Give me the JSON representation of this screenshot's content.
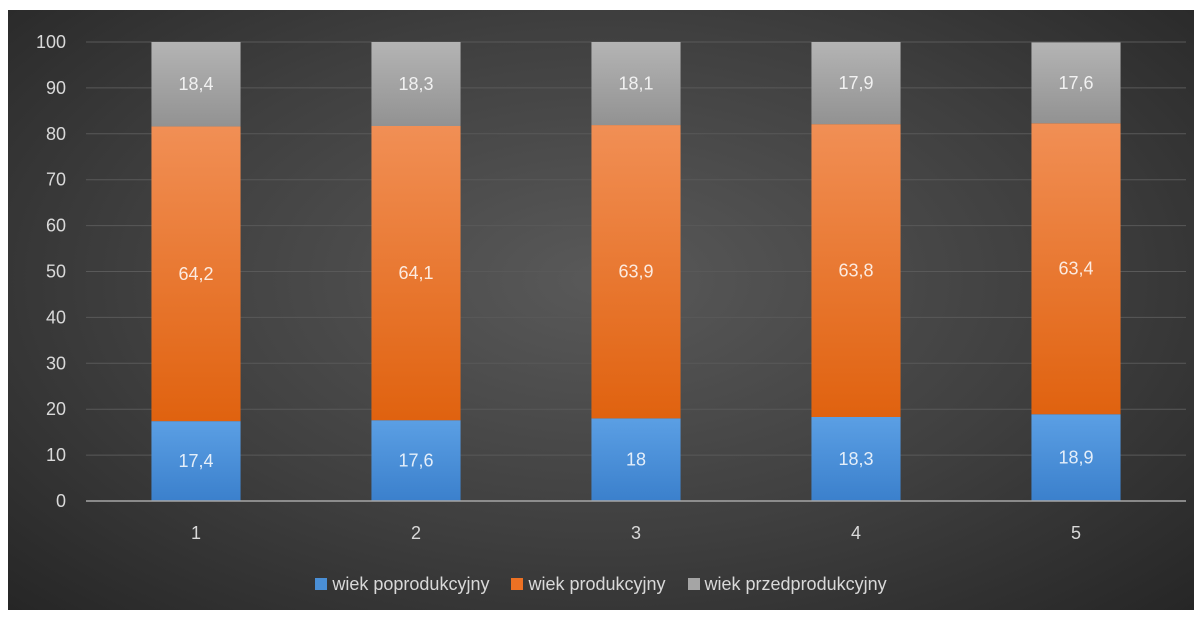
{
  "chart_data": {
    "type": "bar",
    "stacked": true,
    "categories": [
      "1",
      "2",
      "3",
      "4",
      "5"
    ],
    "series": [
      {
        "name": "wiek poprodukcyjny",
        "values": [
          17.4,
          17.6,
          18,
          18.3,
          18.9
        ],
        "labels": [
          "17,4",
          "17,6",
          "18",
          "18,3",
          "18,9"
        ],
        "color": "#4a8fd6"
      },
      {
        "name": "wiek produkcyjny",
        "values": [
          64.2,
          64.1,
          63.9,
          63.8,
          63.4
        ],
        "labels": [
          "64,2",
          "64,1",
          "63,9",
          "63,8",
          "63,4"
        ],
        "color": "#ed7123"
      },
      {
        "name": "wiek przedprodukcyjny",
        "values": [
          18.4,
          18.3,
          18.1,
          17.9,
          17.6
        ],
        "labels": [
          "18,4",
          "18,3",
          "18,1",
          "17,9",
          "17,6"
        ],
        "color": "#a5a5a5"
      }
    ],
    "ylim": [
      0,
      100
    ],
    "yticks": [
      "0",
      "10",
      "20",
      "30",
      "40",
      "50",
      "60",
      "70",
      "80",
      "90",
      "100"
    ],
    "grid": true,
    "legend": "bottom",
    "background": "#404040"
  }
}
